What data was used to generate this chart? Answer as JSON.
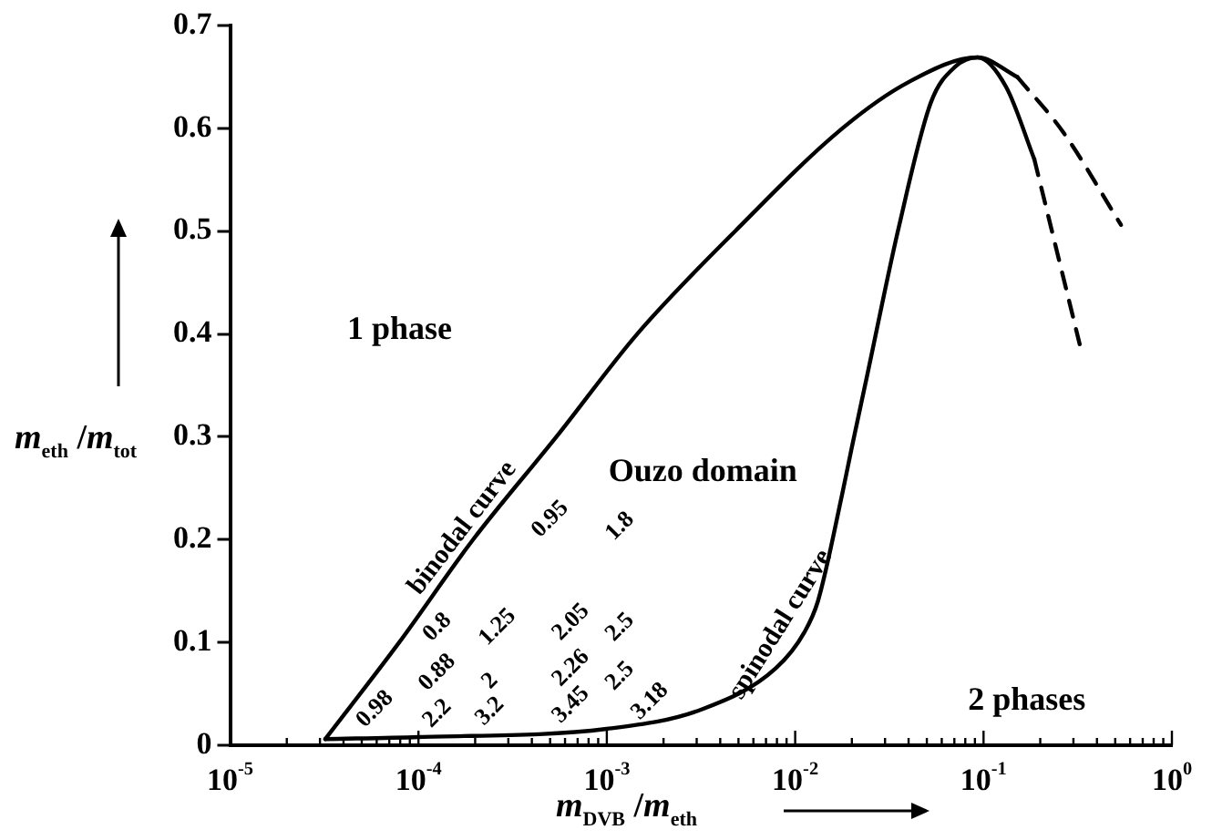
{
  "chart_data": {
    "type": "line",
    "xlabel": "m$_{DVB}$ /m$_{eth}$",
    "ylabel": "m$_{eth}$ /m$_{tot}$",
    "log": "x",
    "grid": false,
    "legend": false,
    "marker": "none",
    "xlim": [
      1e-05,
      1
    ],
    "ylim": [
      0,
      0.7
    ],
    "xticks": [
      {
        "value": 1e-05,
        "label": "10$^{-5}$"
      },
      {
        "value": 2e-05,
        "label": null
      },
      {
        "value": 3e-05,
        "label": null
      },
      {
        "value": 4e-05,
        "label": null
      },
      {
        "value": 5e-05,
        "label": null
      },
      {
        "value": 6e-05,
        "label": null
      },
      {
        "value": 7e-05,
        "label": null
      },
      {
        "value": 8e-05,
        "label": null
      },
      {
        "value": 9e-05,
        "label": null
      },
      {
        "value": 0.0001,
        "label": "10$^{-4}$"
      },
      {
        "value": 0.0002,
        "label": null
      },
      {
        "value": 0.0003,
        "label": null
      },
      {
        "value": 0.0004,
        "label": null
      },
      {
        "value": 0.0005,
        "label": null
      },
      {
        "value": 0.0006,
        "label": null
      },
      {
        "value": 0.0007,
        "label": null
      },
      {
        "value": 0.0008,
        "label": null
      },
      {
        "value": 0.0009,
        "label": null
      },
      {
        "value": 0.001,
        "label": "10$^{-3}$"
      },
      {
        "value": 0.002,
        "label": null
      },
      {
        "value": 0.003,
        "label": null
      },
      {
        "value": 0.004,
        "label": null
      },
      {
        "value": 0.005,
        "label": null
      },
      {
        "value": 0.006,
        "label": null
      },
      {
        "value": 0.007,
        "label": null
      },
      {
        "value": 0.008,
        "label": null
      },
      {
        "value": 0.009,
        "label": null
      },
      {
        "value": 0.01,
        "label": "10$^{-2}$"
      },
      {
        "value": 0.02,
        "label": null
      },
      {
        "value": 0.03,
        "label": null
      },
      {
        "value": 0.04,
        "label": null
      },
      {
        "value": 0.05,
        "label": null
      },
      {
        "value": 0.06,
        "label": null
      },
      {
        "value": 0.07,
        "label": null
      },
      {
        "value": 0.08,
        "label": null
      },
      {
        "value": 0.09,
        "label": null
      },
      {
        "value": 0.1,
        "label": "10$^{-1}$"
      },
      {
        "value": 0.2,
        "label": null
      },
      {
        "value": 0.3,
        "label": null
      },
      {
        "value": 0.4,
        "label": null
      },
      {
        "value": 0.5,
        "label": null
      },
      {
        "value": 0.6,
        "label": null
      },
      {
        "value": 0.7,
        "label": null
      },
      {
        "value": 0.8,
        "label": null
      },
      {
        "value": 0.9,
        "label": null
      },
      {
        "value": 1,
        "label": "10$^{0}$"
      }
    ],
    "yticks": [
      0,
      0.1,
      0.2,
      0.3,
      0.4,
      0.5,
      0.6,
      0.7
    ],
    "series": [
      {
        "name": "binodal curve",
        "color": "#000000",
        "line_style": "solid",
        "x": [
          3.2e-05,
          7.9e-05,
          0.000195,
          0.00054,
          0.00145,
          0.0048,
          0.0178,
          0.04,
          0.093,
          0.151
        ],
        "values": [
          0.006,
          0.1,
          0.2,
          0.3,
          0.4,
          0.5,
          0.6,
          0.645,
          0.669,
          0.65
        ]
      },
      {
        "color": "#000000",
        "line_style": "dashed",
        "x": [
          0.151,
          0.263,
          0.537
        ],
        "values": [
          0.65,
          0.597,
          0.506
        ]
      },
      {
        "name": "spinodal curve",
        "color": "#000000",
        "line_style": "solid",
        "x": [
          3.2e-05,
          0.0001,
          0.001,
          0.0032,
          0.0079,
          0.0112,
          0.0132,
          0.0178,
          0.02,
          0.024,
          0.0355,
          0.0525,
          0.0708,
          0.093,
          0.132,
          0.186
        ],
        "values": [
          0.006,
          0.008,
          0.016,
          0.035,
          0.075,
          0.11,
          0.14,
          0.245,
          0.29,
          0.358,
          0.504,
          0.625,
          0.66,
          0.669,
          0.64,
          0.57
        ]
      },
      {
        "color": "#000000",
        "line_style": "dashed",
        "x": [
          0.186,
          0.324
        ],
        "values": [
          0.57,
          0.39
        ]
      }
    ],
    "annotations": [
      "1 phase",
      "Ouzo domain",
      "2 phases",
      "0.98",
      "0.8",
      "0.88",
      "2.2",
      "1.25",
      "2",
      "3.2",
      "2.05",
      "2.26",
      "3.45",
      "2.5",
      "2.5",
      "3.18",
      "0.95",
      "1.8"
    ]
  }
}
